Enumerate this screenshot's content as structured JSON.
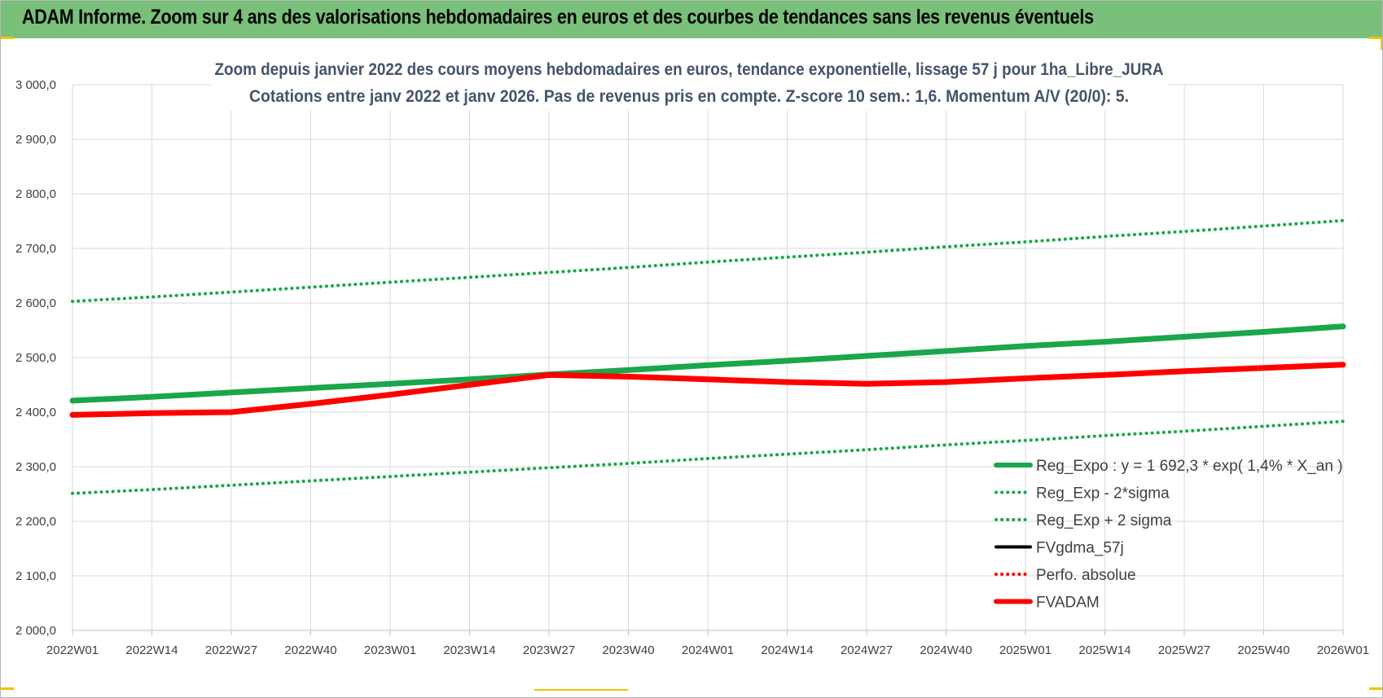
{
  "banner": {
    "title": "ADAM Informe. Zoom sur 4 ans des valorisations hebdomadaires en euros et des courbes de tendances sans les revenus éventuels"
  },
  "chart_data": {
    "type": "line",
    "title": "Zoom depuis janvier 2022 des cours moyens hebdomadaires en euros, tendance exponentielle, lissage 57 j pour 1ha_Libre_JURA",
    "subtitle": "Cotations entre janv 2022 et janv 2026. Pas de revenus pris en compte. Z-score 10 sem.: 1,6. Momentum A/V (20/0): 5.",
    "y_range": [
      2000,
      3000
    ],
    "y_ticks": [
      "2 000,0",
      "2 100,0",
      "2 200,0",
      "2 300,0",
      "2 400,0",
      "2 500,0",
      "2 600,0",
      "2 700,0",
      "2 800,0",
      "2 900,0",
      "3 000,0"
    ],
    "x_ticks": [
      "2022W01",
      "2022W14",
      "2022W27",
      "2022W40",
      "2023W01",
      "2023W14",
      "2023W27",
      "2023W40",
      "2024W01",
      "2024W14",
      "2024W27",
      "2024W40",
      "2025W01",
      "2025W14",
      "2025W27",
      "2025W40",
      "2026W01"
    ],
    "grid": true,
    "legend_position": "bottom-right",
    "series": [
      {
        "name": "Reg_Expo : y = 1 692,3 * exp( 1,4% * X_an )",
        "style": "solid-thick",
        "color": "#1aa64a",
        "values": [
          2421,
          2428,
          2436,
          2444,
          2452,
          2460,
          2469,
          2477,
          2486,
          2494,
          2503,
          2512,
          2521,
          2529,
          2538,
          2547,
          2557
        ]
      },
      {
        "name": "Reg_Exp - 2*sigma",
        "style": "dotted",
        "color": "#1aa64a",
        "values": [
          2251,
          2258,
          2266,
          2274,
          2282,
          2290,
          2298,
          2306,
          2315,
          2323,
          2331,
          2340,
          2348,
          2357,
          2365,
          2374,
          2383
        ]
      },
      {
        "name": "Reg_Exp + 2 sigma",
        "style": "dotted",
        "color": "#1aa64a",
        "values": [
          2603,
          2611,
          2620,
          2629,
          2638,
          2647,
          2656,
          2665,
          2675,
          2684,
          2693,
          2703,
          2712,
          2722,
          2731,
          2741,
          2751
        ]
      },
      {
        "name": "FVgdma_57j",
        "style": "solid",
        "color": "#000000",
        "values": [
          2395,
          2398,
          2400,
          2415,
          2432,
          2450,
          2468,
          2465,
          2460,
          2455,
          2452,
          2455,
          2462,
          2468,
          2475,
          2481,
          2487
        ]
      },
      {
        "name": "Perfo. absolue",
        "style": "dotted",
        "color": "#ff0000",
        "values": []
      },
      {
        "name": "FVADAM",
        "style": "solid-thick",
        "color": "#ff0000",
        "values": [
          2395,
          2398,
          2400,
          2415,
          2432,
          2450,
          2468,
          2465,
          2460,
          2455,
          2452,
          2455,
          2462,
          2468,
          2475,
          2481,
          2487
        ]
      }
    ]
  }
}
